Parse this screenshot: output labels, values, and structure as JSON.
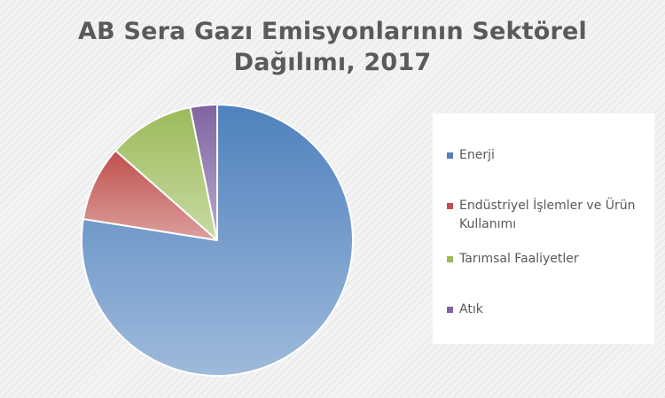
{
  "chart_data": {
    "type": "pie",
    "title_lines": [
      "AB Sera Gazı Emisyonlarının Sektörel",
      "Dağılımı, 2017"
    ],
    "categories": [
      "Enerji",
      "Endüstriyel İşlemler ve Ürün Kullanımı",
      "Tarımsal Faaliyetler",
      "Atık"
    ],
    "legend_lines": [
      [
        "Enerji"
      ],
      [
        "Endüstriyel İşlemler ve Ürün",
        "Kullanımı"
      ],
      [
        "Tarımsal Faaliyetler"
      ],
      [
        "Atık"
      ]
    ],
    "values": [
      77.5,
      9.0,
      10.3,
      3.2
    ],
    "value_unit": "%",
    "colors": [
      "#4f81bd",
      "#c0504d",
      "#9bbb59",
      "#8064a2"
    ],
    "legend_position": "right",
    "start_angle": "top",
    "direction": "clockwise"
  }
}
